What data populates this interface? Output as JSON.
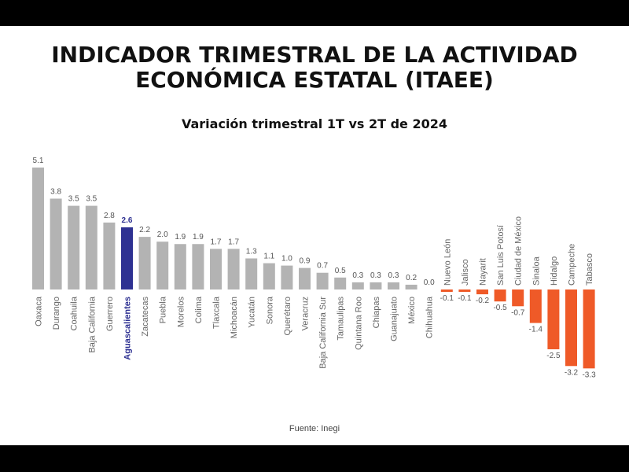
{
  "chart_data": {
    "type": "bar",
    "title": "INDICADOR TRIMESTRAL DE LA ACTIVIDAD ECONÓMICA ESTATAL (ITAEE)",
    "title_lines": [
      "INDICADOR TRIMESTRAL DE LA ACTIVIDAD",
      "ECONÓMICA ESTATAL (ITAEE)"
    ],
    "subtitle": "Variación trimestral 1T vs 2T de 2024",
    "source": "Fuente: Inegi",
    "highlight": "Aguascalientes",
    "colors": {
      "neutral": "#b3b3b3",
      "highlight": "#2e3192",
      "negative": "#ef5a28"
    },
    "categories": [
      "Oaxaca",
      "Durango",
      "Coahuila",
      "Baja California",
      "Guerrero",
      "Aguascalientes",
      "Zacatecas",
      "Puebla",
      "Morelos",
      "Colima",
      "Tlaxcala",
      "Michoacán",
      "Yucatán",
      "Sonora",
      "Querétaro",
      "Veracruz",
      "Baja California Sur",
      "Tamaulipas",
      "Quintana Roo",
      "Chiapas",
      "Guanajuato",
      "México",
      "Chihuahua",
      "Nuevo León",
      "Jalisco",
      "Nayarit",
      "San Luis Potosí",
      "Ciudad de México",
      "Sinaloa",
      "Hidalgo",
      "Campeche",
      "Tabasco"
    ],
    "values": [
      5.1,
      3.8,
      3.5,
      3.5,
      2.8,
      2.6,
      2.2,
      2.0,
      1.9,
      1.9,
      1.7,
      1.7,
      1.3,
      1.1,
      1.0,
      0.9,
      0.7,
      0.5,
      0.3,
      0.3,
      0.3,
      0.2,
      0.0,
      -0.1,
      -0.1,
      -0.2,
      -0.5,
      -0.7,
      -1.4,
      -2.5,
      -3.2,
      -3.3
    ],
    "value_labels": [
      "5.1",
      "3.8",
      "3.5",
      "3.5",
      "2.8",
      "2.6",
      "2.2",
      "2.0",
      "1.9",
      "1.9",
      "1.7",
      "1.7",
      "1.3",
      "1.1",
      "1.0",
      "0.9",
      "0.7",
      "0.5",
      "0.3",
      "0.3",
      "0.3",
      "0.2",
      "0.0",
      "-0.1",
      "-0.1",
      "-0.2",
      "-0.5",
      "-0.7",
      "-1.4",
      "-2.5",
      "-3.2",
      "-3.3"
    ],
    "xlabel": "",
    "ylabel": "",
    "ylim": [
      -3.3,
      5.1
    ]
  }
}
